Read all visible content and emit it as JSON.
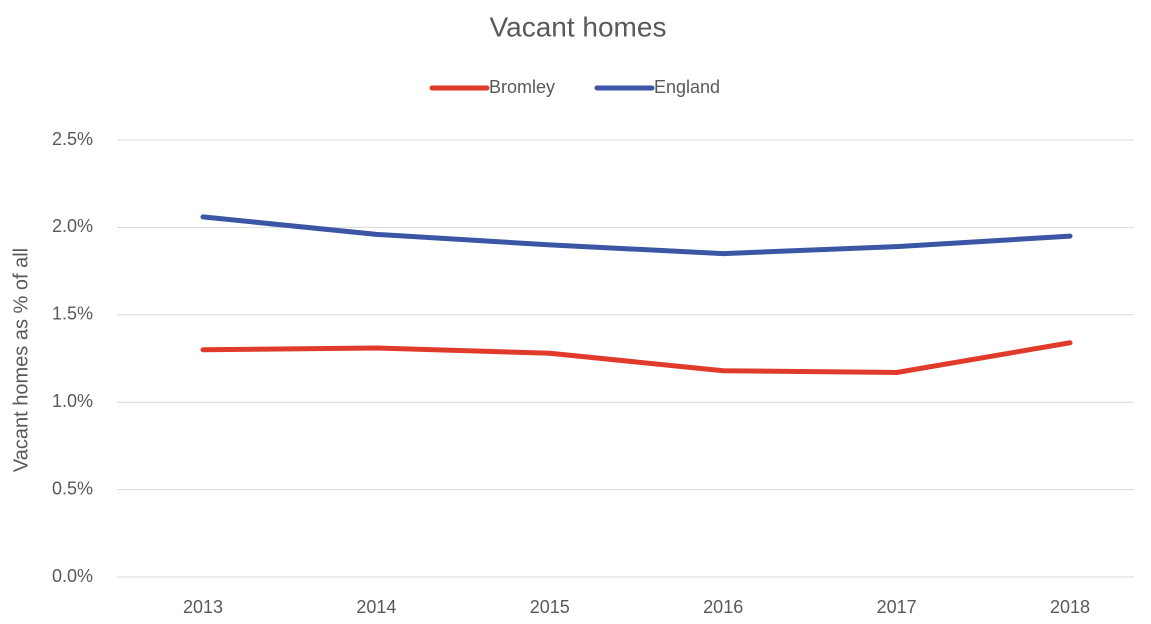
{
  "chart_data": {
    "type": "line",
    "title": "Vacant homes",
    "y_label": "Vacant homes as % of all",
    "categories": [
      "2013",
      "2014",
      "2015",
      "2016",
      "2017",
      "2018"
    ],
    "series": [
      {
        "name": "Bromley",
        "color": "#e03a2b",
        "values": [
          1.3,
          1.31,
          1.28,
          1.18,
          1.17,
          1.34
        ]
      },
      {
        "name": "England",
        "color": "#3a56a5",
        "values": [
          2.06,
          1.96,
          1.9,
          1.85,
          1.89,
          1.95
        ]
      }
    ],
    "ylim": [
      0,
      2.5
    ],
    "yticks": [
      {
        "value": 0,
        "label": "0.0%"
      },
      {
        "value": 0.5,
        "label": "0.5%"
      },
      {
        "value": 1,
        "label": "1.0%"
      },
      {
        "value": 1.5,
        "label": "1.5%"
      },
      {
        "value": 2,
        "label": "2.0%"
      },
      {
        "value": 2.5,
        "label": "2.5%"
      }
    ],
    "grid": true,
    "legend": "top"
  }
}
